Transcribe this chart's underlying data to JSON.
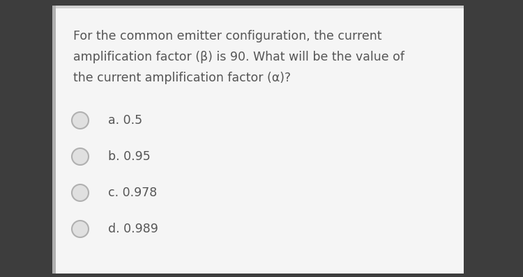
{
  "question_lines": [
    "For the common emitter configuration, the current",
    "amplification factor (β) is 90. What will be the value of",
    "the current amplification factor (α)?"
  ],
  "options": [
    "a. 0.5",
    "b. 0.95",
    "c. 0.978",
    "d. 0.989"
  ],
  "bg_color": "#3d3d3d",
  "panel_color": "#f5f5f5",
  "text_color": "#555555",
  "question_fontsize": 12.5,
  "option_fontsize": 12.5,
  "radio_face_color": "#e0e0e0",
  "radio_edge_color": "#b0b0b0",
  "left_bar_color": "#b0b0b0",
  "top_bar_color": "#d0d0d0"
}
